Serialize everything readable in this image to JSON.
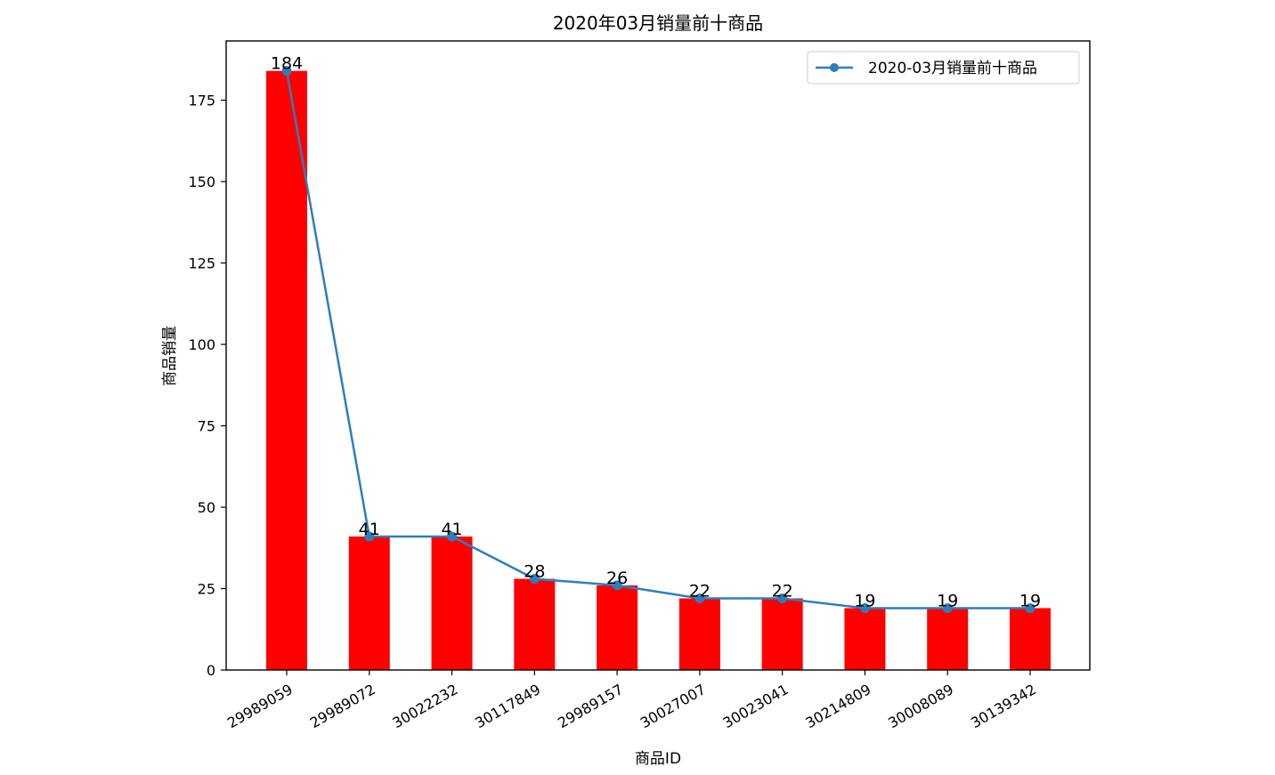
{
  "chart_data": {
    "type": "bar",
    "title": "2020年03月销量前十商品",
    "xlabel": "商品ID",
    "ylabel": "商品销量",
    "categories": [
      "29989059",
      "29989072",
      "30022232",
      "30117849",
      "29989157",
      "30027007",
      "30023041",
      "30214809",
      "30008089",
      "30139342"
    ],
    "ylim": [
      0,
      193.2
    ],
    "yticks": [
      0,
      25,
      50,
      75,
      100,
      125,
      150,
      175
    ],
    "grid": false,
    "legend_position": "top-right",
    "series": [
      {
        "type": "bar",
        "values": [
          184,
          41,
          41,
          28,
          26,
          22,
          22,
          19,
          19,
          19
        ],
        "color": "#ff0000"
      },
      {
        "type": "line",
        "name": "2020-03月销量前十商品",
        "values": [
          184,
          41,
          41,
          28,
          26,
          22,
          22,
          19,
          19,
          19
        ],
        "color": "#2e7ebc",
        "marker": "circle"
      }
    ],
    "data_labels": [
      "184",
      "41",
      "41",
      "28",
      "26",
      "22",
      "22",
      "19",
      "19",
      "19"
    ]
  }
}
